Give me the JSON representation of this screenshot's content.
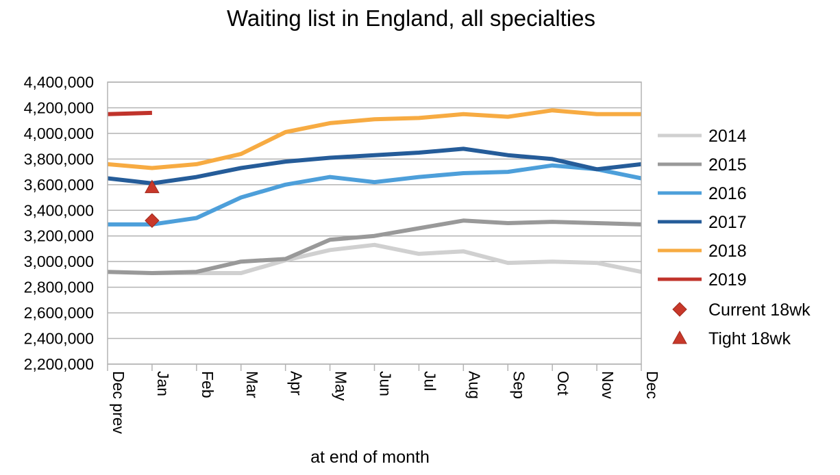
{
  "chart_data": {
    "type": "line",
    "title": "Waiting list in England, all specialties",
    "xlabel": "at end of month",
    "ylabel": "",
    "categories": [
      "Dec prev",
      "Jan",
      "Feb",
      "Mar",
      "Apr",
      "May",
      "Jun",
      "Jul",
      "Aug",
      "Sep",
      "Oct",
      "Nov",
      "Dec"
    ],
    "ylim": [
      2200000,
      4400000
    ],
    "yticks": [
      2200000,
      2400000,
      2600000,
      2800000,
      3000000,
      3200000,
      3400000,
      3600000,
      3800000,
      4000000,
      4200000,
      4400000
    ],
    "ytick_labels": [
      "2,200,000",
      "2,400,000",
      "2,600,000",
      "2,800,000",
      "3,000,000",
      "3,200,000",
      "3,400,000",
      "3,600,000",
      "3,800,000",
      "4,000,000",
      "4,200,000",
      "4,400,000"
    ],
    "grid": true,
    "legend_position": "right",
    "series": [
      {
        "name": "2014",
        "color": "#d0d0d0",
        "values": [
          null,
          2910000,
          2910000,
          2910000,
          3010000,
          3090000,
          3130000,
          3060000,
          3080000,
          2990000,
          3000000,
          2990000,
          2920000
        ]
      },
      {
        "name": "2015",
        "color": "#999999",
        "values": [
          2920000,
          2910000,
          2920000,
          3000000,
          3020000,
          3170000,
          3200000,
          3260000,
          3320000,
          3300000,
          3310000,
          3300000,
          3290000
        ]
      },
      {
        "name": "2016",
        "color": "#4d9fda",
        "values": [
          3290000,
          3290000,
          3340000,
          3500000,
          3600000,
          3660000,
          3620000,
          3660000,
          3690000,
          3700000,
          3750000,
          3720000,
          3650000
        ]
      },
      {
        "name": "2017",
        "color": "#255c99",
        "values": [
          3650000,
          3610000,
          3660000,
          3730000,
          3780000,
          3810000,
          3830000,
          3850000,
          3880000,
          3830000,
          3800000,
          3720000,
          3760000
        ]
      },
      {
        "name": "2018",
        "color": "#f7ab42",
        "values": [
          3760000,
          3730000,
          3760000,
          3840000,
          4010000,
          4080000,
          4110000,
          4120000,
          4150000,
          4130000,
          4180000,
          4150000,
          4150000
        ]
      },
      {
        "name": "2019",
        "color": "#c0332b",
        "values": [
          4150000,
          4160000,
          null,
          null,
          null,
          null,
          null,
          null,
          null,
          null,
          null,
          null,
          null
        ]
      }
    ],
    "markers": [
      {
        "name": "Current 18wk",
        "shape": "diamond",
        "color": "#c8382a",
        "x": "Jan",
        "y": 3320000
      },
      {
        "name": "Tight 18wk",
        "shape": "triangle",
        "color": "#c8382a",
        "x": "Jan",
        "y": 3580000
      }
    ]
  }
}
